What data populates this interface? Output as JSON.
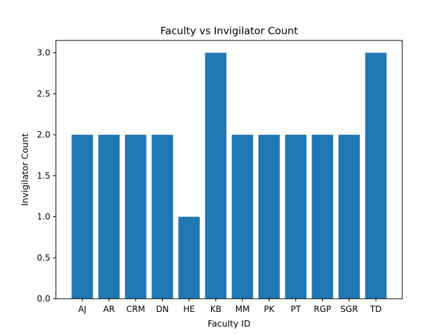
{
  "chart_data": {
    "type": "bar",
    "title": "Faculty vs Invigilator Count",
    "xlabel": "Faculty ID",
    "ylabel": "Invigilator Count",
    "categories": [
      "AJ",
      "AR",
      "CRM",
      "DN",
      "HE",
      "KB",
      "MM",
      "PK",
      "PT",
      "RGP",
      "SGR",
      "TD"
    ],
    "values": [
      2,
      2,
      2,
      2,
      1,
      3,
      2,
      2,
      2,
      2,
      2,
      3
    ],
    "ylim": [
      0,
      3.15
    ],
    "yticks": [
      "0.0",
      "0.5",
      "1.0",
      "1.5",
      "2.0",
      "2.5",
      "3.0"
    ],
    "bar_color": "#1f77b4",
    "grid": false
  }
}
